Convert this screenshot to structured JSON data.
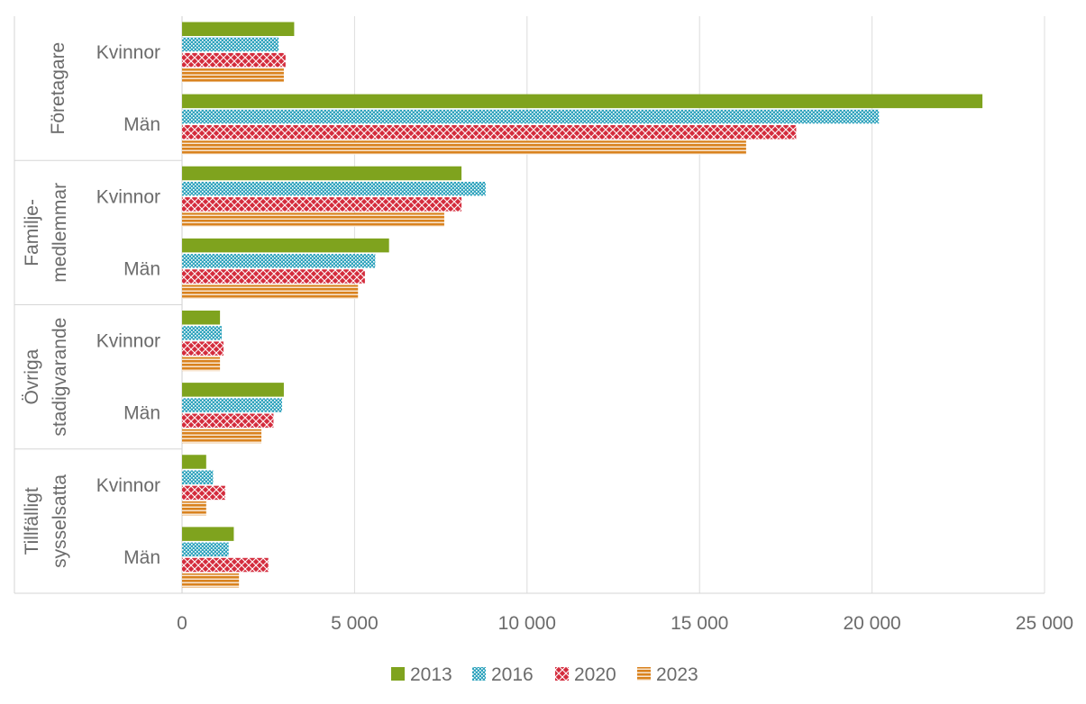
{
  "chart_data": {
    "type": "bar",
    "orientation": "horizontal",
    "title": "",
    "xlabel": "",
    "ylabel": "",
    "xlim": [
      0,
      25000
    ],
    "x_ticks": [
      "0",
      "5 000",
      "10 000",
      "15 000",
      "20 000",
      "25 000"
    ],
    "grid": "vertical",
    "legend_position": "bottom",
    "groups": [
      {
        "label": "Företagare",
        "label_lines": [
          "Företagare"
        ],
        "subcategories": [
          "Kvinnor",
          "Män"
        ]
      },
      {
        "label": "Familje-medlemmar",
        "label_lines": [
          "Familje-",
          "medlemmar"
        ],
        "subcategories": [
          "Kvinnor",
          "Män"
        ]
      },
      {
        "label": "Övriga stadigvarande",
        "label_lines": [
          "Övriga",
          "stadigvarande"
        ],
        "subcategories": [
          "Kvinnor",
          "Män"
        ]
      },
      {
        "label": "Tillfälligt sysselsatta",
        "label_lines": [
          "Tillfälligt",
          "sysselsatta"
        ],
        "subcategories": [
          "Kvinnor",
          "Män"
        ]
      }
    ],
    "series": [
      {
        "name": "2013",
        "color": "#7fa31e",
        "pattern": "solid",
        "values": [
          3250,
          23200,
          8100,
          6000,
          1100,
          2950,
          700,
          1500
        ]
      },
      {
        "name": "2016",
        "color": "#2fa3bd",
        "pattern": "dots",
        "values": [
          2800,
          20200,
          8800,
          5600,
          1150,
          2900,
          900,
          1350
        ]
      },
      {
        "name": "2020",
        "color": "#d42c3d",
        "pattern": "crosshatch",
        "values": [
          3000,
          17800,
          8100,
          5300,
          1200,
          2650,
          1250,
          2500
        ]
      },
      {
        "name": "2023",
        "color": "#d9821e",
        "pattern": "horizontal",
        "values": [
          2950,
          16350,
          7600,
          5100,
          1100,
          2300,
          700,
          1650
        ]
      }
    ]
  }
}
